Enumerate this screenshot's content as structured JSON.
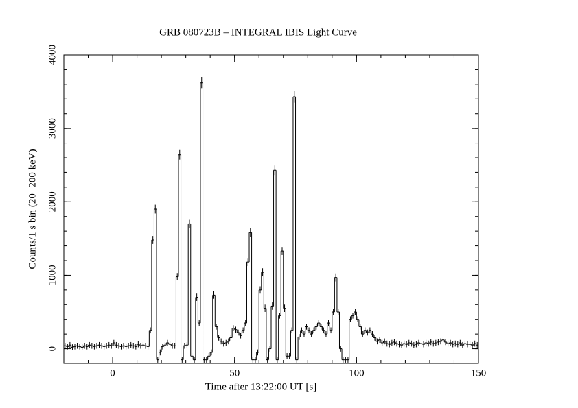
{
  "chart_data": {
    "type": "step",
    "title": "GRB 080723B – INTEGRAL IBIS Light Curve",
    "x_label": "Time after 13:22:00 UT [s]",
    "y_label": "Counts/1 s bin (20−200 keV)",
    "xlim": [
      -20,
      150
    ],
    "ylim": [
      -200,
      4000
    ],
    "xticks": [
      0,
      50,
      100,
      150
    ],
    "yticks": [
      0,
      1000,
      2000,
      3000,
      4000
    ],
    "xminor": 10,
    "yminor": 200,
    "color": "#000000",
    "x": [
      -20,
      -19,
      -18,
      -17,
      -16,
      -15,
      -14,
      -13,
      -12,
      -11,
      -10,
      -9,
      -8,
      -7,
      -6,
      -5,
      -4,
      -3,
      -2,
      -1,
      0,
      1,
      2,
      3,
      4,
      5,
      6,
      7,
      8,
      9,
      10,
      11,
      12,
      13,
      14,
      15,
      16,
      17,
      18,
      19,
      20,
      21,
      22,
      23,
      24,
      25,
      26,
      27,
      28,
      29,
      30,
      31,
      32,
      33,
      34,
      35,
      36,
      37,
      38,
      39,
      40,
      41,
      42,
      43,
      44,
      45,
      46,
      47,
      48,
      49,
      50,
      51,
      52,
      53,
      54,
      55,
      56,
      57,
      58,
      59,
      60,
      61,
      62,
      63,
      64,
      65,
      66,
      67,
      68,
      69,
      70,
      71,
      72,
      73,
      74,
      75,
      76,
      77,
      78,
      79,
      80,
      81,
      82,
      83,
      84,
      85,
      86,
      87,
      88,
      89,
      90,
      91,
      92,
      93,
      94,
      95,
      96,
      97,
      98,
      99,
      100,
      101,
      102,
      103,
      104,
      105,
      106,
      107,
      108,
      109,
      110,
      111,
      112,
      113,
      114,
      115,
      116,
      117,
      118,
      119,
      120,
      121,
      122,
      123,
      124,
      125,
      126,
      127,
      128,
      129,
      130,
      131,
      132,
      133,
      134,
      135,
      136,
      137,
      138,
      139,
      140,
      141,
      142,
      143,
      144,
      145,
      146,
      147,
      148,
      149
    ],
    "values": [
      40,
      30,
      50,
      20,
      30,
      40,
      30,
      20,
      40,
      30,
      50,
      40,
      30,
      40,
      50,
      40,
      30,
      40,
      50,
      40,
      80,
      50,
      40,
      30,
      40,
      30,
      40,
      50,
      40,
      30,
      60,
      40,
      50,
      40,
      30,
      250,
      1480,
      1900,
      -150,
      -50,
      30,
      50,
      80,
      60,
      40,
      40,
      980,
      2640,
      -150,
      40,
      50,
      1700,
      -100,
      -150,
      700,
      350,
      3620,
      -150,
      -150,
      -100,
      -50,
      730,
      300,
      150,
      100,
      70,
      80,
      100,
      150,
      280,
      260,
      220,
      180,
      250,
      350,
      1180,
      1580,
      -150,
      -150,
      -50,
      800,
      1040,
      550,
      -150,
      0,
      580,
      2430,
      -150,
      450,
      1330,
      550,
      -100,
      -100,
      250,
      3430,
      -150,
      160,
      250,
      200,
      300,
      250,
      200,
      250,
      300,
      350,
      300,
      250,
      200,
      350,
      250,
      500,
      970,
      500,
      0,
      -150,
      -150,
      -150,
      400,
      450,
      500,
      400,
      300,
      200,
      250,
      220,
      250,
      200,
      150,
      100,
      120,
      80,
      100,
      70,
      60,
      80,
      90,
      70,
      60,
      50,
      70,
      60,
      80,
      70,
      50,
      60,
      80,
      70,
      60,
      80,
      70,
      90,
      70,
      80,
      90,
      100,
      120,
      90,
      70,
      80,
      60,
      70,
      60,
      80,
      50,
      70,
      60,
      60,
      50,
      70,
      50
    ],
    "errors": [
      40,
      40,
      40,
      40,
      40,
      40,
      40,
      40,
      40,
      40,
      40,
      40,
      40,
      40,
      40,
      40,
      40,
      40,
      40,
      40,
      40,
      40,
      40,
      40,
      40,
      40,
      40,
      40,
      40,
      40,
      40,
      40,
      40,
      40,
      40,
      40,
      55,
      60,
      40,
      40,
      40,
      40,
      40,
      40,
      40,
      40,
      50,
      65,
      40,
      40,
      40,
      55,
      40,
      40,
      50,
      40,
      80,
      40,
      40,
      40,
      40,
      50,
      40,
      40,
      40,
      40,
      40,
      40,
      40,
      40,
      40,
      40,
      40,
      40,
      40,
      55,
      60,
      40,
      40,
      40,
      50,
      55,
      50,
      40,
      40,
      50,
      65,
      40,
      40,
      55,
      50,
      40,
      40,
      40,
      80,
      40,
      40,
      40,
      40,
      40,
      40,
      40,
      40,
      40,
      40,
      40,
      40,
      40,
      40,
      40,
      40,
      55,
      40,
      40,
      40,
      40,
      40,
      40,
      40,
      40,
      40,
      40,
      40,
      40,
      40,
      40,
      40,
      40,
      40,
      40,
      40,
      40,
      40,
      40,
      40,
      40,
      40,
      40,
      40,
      40,
      40,
      40,
      40,
      40,
      40,
      40,
      40,
      40,
      40,
      40,
      40,
      40,
      40,
      40,
      40,
      40,
      40,
      40,
      40,
      40,
      40,
      40,
      40,
      40,
      40,
      40,
      40,
      40,
      40,
      40
    ]
  }
}
